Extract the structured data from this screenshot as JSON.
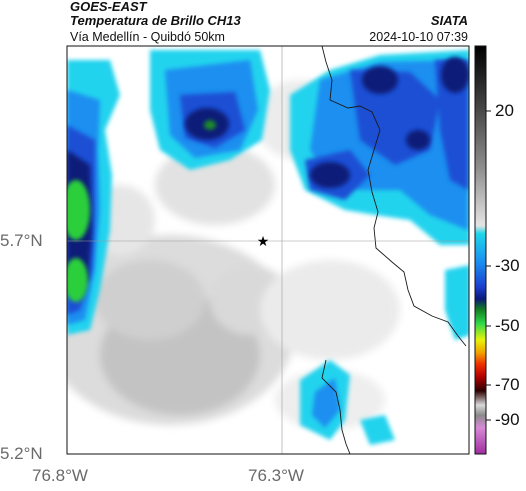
{
  "header": {
    "source": "GOES-EAST",
    "product": "Temperatura de Brillo CH13",
    "organization": "SIATA",
    "region": "Vía Medellín - Quibdó 50km",
    "timestamp": "2024-10-10 07:39"
  },
  "axes": {
    "lat_labels": [
      "5.7°N",
      "5.2°N"
    ],
    "lon_labels": [
      "76.8°W",
      "76.3°W"
    ]
  },
  "colorbar": {
    "tick_labels": [
      "20",
      "-30",
      "-50",
      "-70",
      "-90"
    ],
    "range": [
      -95,
      40
    ]
  },
  "marker": {
    "symbol": "★"
  },
  "colors": {
    "cloud_cold_navy": "#0a1a78",
    "cloud_blue": "#1d4fd4",
    "cloud_mid_blue": "#1f8ff0",
    "cloud_cyan": "#22d3ee",
    "cold_core_green": "#2ccf3a",
    "clear_sky_gray": "#e9e9e9",
    "land_gray": "#c6c6c6",
    "boundary_line": "#1a1a1a"
  }
}
